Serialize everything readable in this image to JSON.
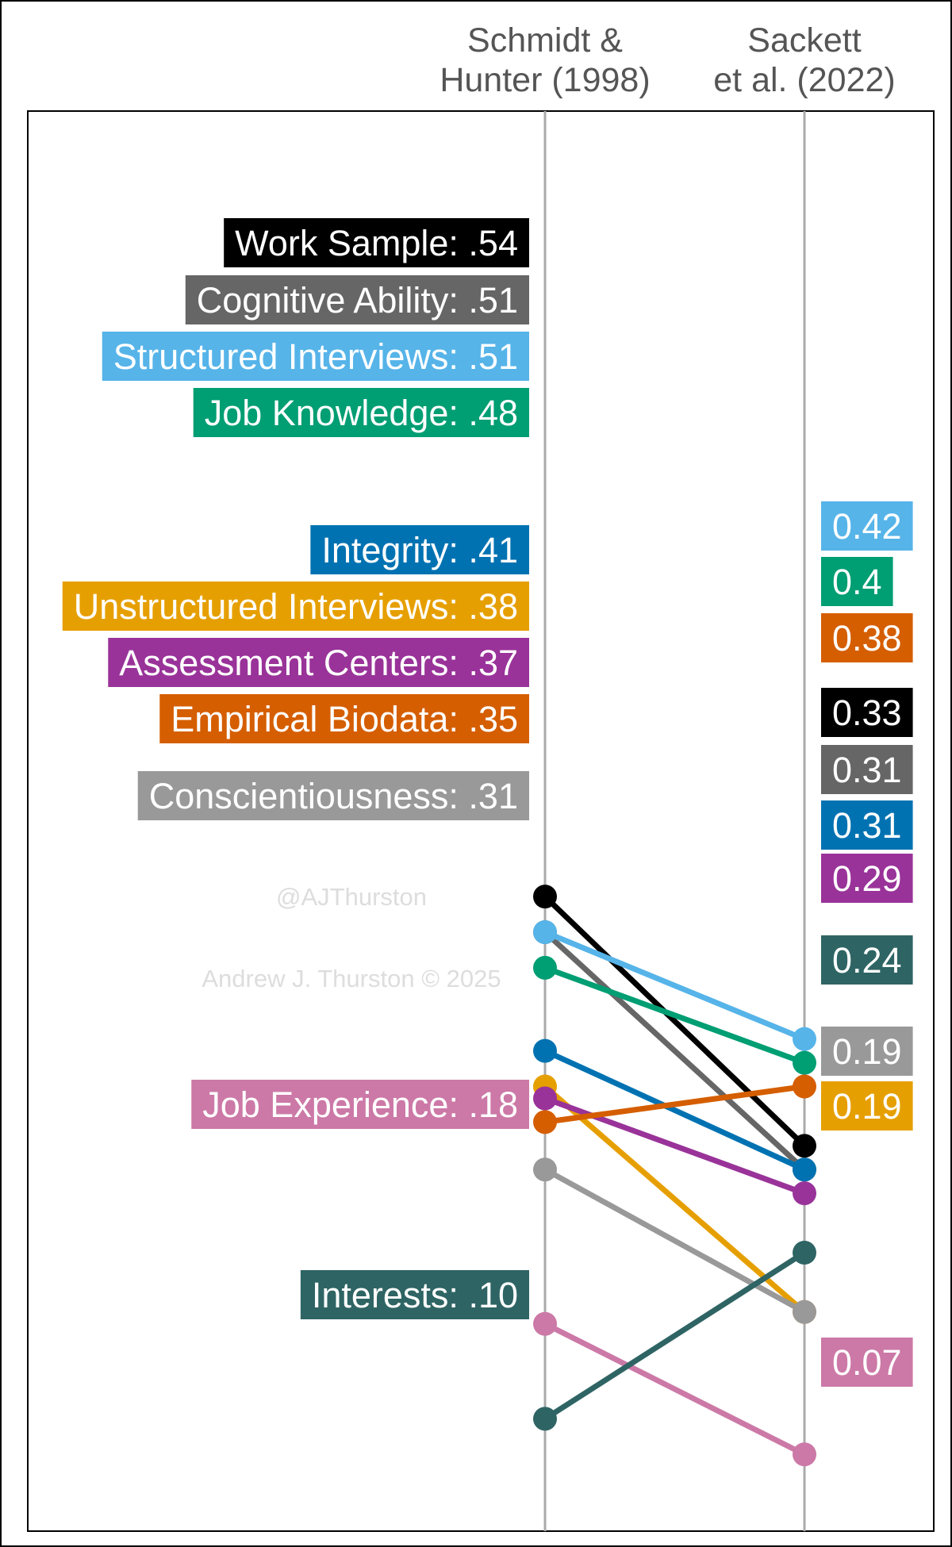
{
  "chart_data": {
    "type": "slope",
    "columns": [
      "Schmidt & Hunter (1998)",
      "Sackett et al. (2022)"
    ],
    "column_headers": [
      [
        "Schmidt &",
        "Hunter (1998)"
      ],
      [
        "Sackett",
        "et al. (2022)"
      ]
    ],
    "ylim": [
      0.0,
      0.6
    ],
    "grid": false,
    "series": [
      {
        "name": "Work Sample",
        "left_label": "Work Sample: .54",
        "right_label": "0.33",
        "values": [
          0.54,
          0.33
        ],
        "color": "#000000"
      },
      {
        "name": "Cognitive Ability",
        "left_label": "Cognitive Ability: .51",
        "right_label": "0.31",
        "values": [
          0.51,
          0.31
        ],
        "color": "#666666"
      },
      {
        "name": "Structured Interviews",
        "left_label": "Structured Interviews: .51",
        "right_label": "0.42",
        "values": [
          0.51,
          0.42
        ],
        "color": "#56B4E9"
      },
      {
        "name": "Job Knowledge",
        "left_label": "Job Knowledge: .48",
        "right_label": "0.4",
        "values": [
          0.48,
          0.4
        ],
        "color": "#009E73"
      },
      {
        "name": "Integrity",
        "left_label": "Integrity: .41",
        "right_label": "0.31",
        "values": [
          0.41,
          0.31
        ],
        "color": "#0072B2"
      },
      {
        "name": "Unstructured Interviews",
        "left_label": "Unstructured Interviews: .38",
        "right_label": "0.19",
        "values": [
          0.38,
          0.19
        ],
        "color": "#E69F00"
      },
      {
        "name": "Assessment Centers",
        "left_label": "Assessment Centers: .37",
        "right_label": "0.29",
        "values": [
          0.37,
          0.29
        ],
        "color": "#993399"
      },
      {
        "name": "Empirical Biodata",
        "left_label": "Empirical Biodata: .35",
        "right_label": "0.38",
        "values": [
          0.35,
          0.38
        ],
        "color": "#D55E00"
      },
      {
        "name": "Conscientiousness",
        "left_label": "Conscientiousness: .31",
        "right_label": "0.19",
        "values": [
          0.31,
          0.19
        ],
        "color": "#999999"
      },
      {
        "name": "Job Experience",
        "left_label": "Job Experience: .18",
        "right_label": "0.07",
        "values": [
          0.18,
          0.07
        ],
        "color": "#CC79A7"
      },
      {
        "name": "Interests",
        "left_label": "Interests: .10",
        "right_label": "0.24",
        "values": [
          0.1,
          0.24
        ],
        "color": "#2F6464"
      }
    ],
    "watermarks": [
      "@AJThurston",
      "Andrew J. Thurston © 2025"
    ]
  }
}
